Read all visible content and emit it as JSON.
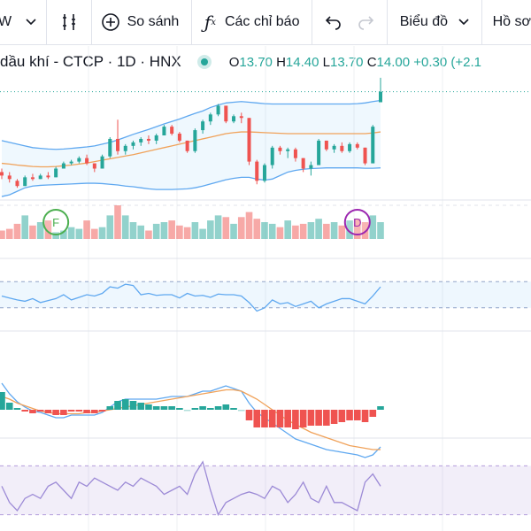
{
  "toolbar": {
    "interval_text": "W",
    "compare_label": "So sánh",
    "indicators_label": "Các chỉ báo",
    "chart_type_label": "Biểu đồ",
    "profile_label": "Hồ sơ"
  },
  "legend": {
    "symbol_desc": "dầu khí - CTCP · 1D · HNX",
    "open_key": "O",
    "open": "13.70",
    "high_key": "H",
    "high": "14.40",
    "low_key": "L",
    "low": "13.70",
    "close_key": "C",
    "close": "14.00",
    "change": "+0.30 (+2.1"
  },
  "colors": {
    "up": "#26a69a",
    "down": "#ef5350",
    "bb": "#5fa8f0",
    "sma": "#f0a25a",
    "rsi": "#9c8ad6"
  },
  "markers": [
    {
      "label": "F",
      "color": "#4caf50"
    },
    {
      "label": "D",
      "color": "#9c27b0"
    }
  ],
  "chart_data": {
    "type": "candlestick",
    "candles": [
      [
        11.7,
        11.8,
        11.5,
        11.6
      ],
      [
        11.6,
        11.7,
        11.4,
        11.5
      ],
      [
        11.45,
        11.5,
        11.25,
        11.3
      ],
      [
        11.3,
        11.6,
        11.3,
        11.55
      ],
      [
        11.55,
        11.65,
        11.45,
        11.5
      ],
      [
        11.5,
        11.65,
        11.5,
        11.6
      ],
      [
        11.6,
        11.7,
        11.5,
        11.55
      ],
      [
        11.55,
        11.85,
        11.55,
        11.8
      ],
      [
        11.8,
        12.0,
        11.8,
        11.95
      ],
      [
        11.95,
        12.05,
        11.9,
        12.0
      ],
      [
        12.0,
        12.15,
        11.95,
        12.1
      ],
      [
        12.1,
        12.2,
        11.9,
        11.95
      ],
      [
        11.95,
        11.95,
        11.7,
        11.8
      ],
      [
        11.8,
        12.2,
        11.8,
        12.15
      ],
      [
        12.15,
        12.7,
        12.1,
        12.65
      ],
      [
        12.65,
        13.2,
        12.2,
        12.3
      ],
      [
        12.3,
        12.5,
        12.2,
        12.45
      ],
      [
        12.45,
        12.6,
        12.35,
        12.55
      ],
      [
        12.55,
        12.7,
        12.45,
        12.65
      ],
      [
        12.65,
        12.75,
        12.5,
        12.6
      ],
      [
        12.6,
        12.8,
        12.5,
        12.75
      ],
      [
        12.75,
        13.05,
        12.75,
        13.0
      ],
      [
        13.0,
        13.05,
        12.75,
        12.8
      ],
      [
        12.8,
        12.85,
        12.55,
        12.6
      ],
      [
        12.6,
        12.6,
        12.25,
        12.3
      ],
      [
        12.3,
        12.95,
        12.25,
        12.9
      ],
      [
        12.9,
        13.2,
        12.8,
        13.15
      ],
      [
        13.15,
        13.4,
        13.05,
        13.35
      ],
      [
        13.35,
        13.65,
        13.3,
        13.6
      ],
      [
        13.6,
        13.6,
        13.1,
        13.15
      ],
      [
        13.15,
        13.35,
        13.1,
        13.3
      ],
      [
        13.3,
        13.4,
        13.1,
        13.25
      ],
      [
        13.25,
        13.25,
        11.9,
        12.0
      ],
      [
        12.0,
        12.05,
        11.35,
        11.45
      ],
      [
        11.45,
        11.95,
        11.4,
        11.9
      ],
      [
        11.9,
        12.45,
        11.8,
        12.4
      ],
      [
        12.4,
        12.45,
        12.2,
        12.3
      ],
      [
        12.3,
        12.4,
        12.1,
        12.35
      ],
      [
        12.35,
        12.4,
        12.0,
        12.1
      ],
      [
        12.1,
        12.1,
        11.7,
        11.8
      ],
      [
        11.8,
        12.0,
        11.6,
        11.9
      ],
      [
        11.9,
        12.65,
        11.9,
        12.6
      ],
      [
        12.6,
        12.6,
        12.3,
        12.35
      ],
      [
        12.35,
        12.5,
        12.25,
        12.45
      ],
      [
        12.45,
        12.55,
        12.25,
        12.3
      ],
      [
        12.3,
        12.55,
        12.25,
        12.5
      ],
      [
        12.5,
        12.55,
        12.35,
        12.4
      ],
      [
        12.4,
        12.4,
        11.9,
        11.95
      ],
      [
        11.95,
        13.05,
        11.95,
        13.0
      ],
      [
        13.7,
        14.4,
        13.7,
        14.0
      ]
    ],
    "candles_format": [
      "open",
      "high",
      "low",
      "close"
    ],
    "bollinger": {
      "upper": [
        12.6,
        12.55,
        12.5,
        12.45,
        12.4,
        12.38,
        12.36,
        12.35,
        12.36,
        12.38,
        12.4,
        12.42,
        12.45,
        12.5,
        12.55,
        12.62,
        12.7,
        12.78,
        12.85,
        12.92,
        13.0,
        13.08,
        13.15,
        13.22,
        13.3,
        13.38,
        13.45,
        13.55,
        13.62,
        13.68,
        13.7,
        13.72,
        13.7,
        13.68,
        13.66,
        13.65,
        13.65,
        13.65,
        13.65,
        13.65,
        13.65,
        13.65,
        13.65,
        13.65,
        13.65,
        13.65,
        13.66,
        13.68,
        13.72,
        13.75
      ],
      "middle": [
        11.95,
        11.93,
        11.9,
        11.88,
        11.86,
        11.85,
        11.85,
        11.86,
        11.88,
        11.9,
        11.93,
        11.96,
        12.0,
        12.04,
        12.08,
        12.12,
        12.16,
        12.2,
        12.25,
        12.3,
        12.35,
        12.4,
        12.45,
        12.5,
        12.55,
        12.6,
        12.65,
        12.7,
        12.75,
        12.8,
        12.83,
        12.85,
        12.85,
        12.84,
        12.83,
        12.82,
        12.81,
        12.8,
        12.8,
        12.8,
        12.8,
        12.8,
        12.8,
        12.8,
        12.8,
        12.8,
        12.8,
        12.8,
        12.82,
        12.85
      ],
      "lower": [
        11.0,
        11.05,
        11.15,
        11.25,
        11.3,
        11.32,
        11.33,
        11.34,
        11.35,
        11.36,
        11.37,
        11.38,
        11.38,
        11.37,
        11.35,
        11.33,
        11.3,
        11.28,
        11.25,
        11.22,
        11.2,
        11.2,
        11.2,
        11.21,
        11.22,
        11.25,
        11.3,
        11.36,
        11.42,
        11.48,
        11.52,
        11.55,
        11.55,
        11.5,
        11.47,
        11.5,
        11.6,
        11.7,
        11.75,
        11.78,
        11.8,
        11.81,
        11.82,
        11.82,
        11.82,
        11.82,
        11.82,
        11.81,
        11.81,
        11.82
      ]
    },
    "volume": [
      10,
      12,
      18,
      28,
      16,
      20,
      22,
      8,
      10,
      14,
      12,
      22,
      12,
      14,
      28,
      40,
      28,
      20,
      16,
      10,
      18,
      20,
      22,
      16,
      14,
      20,
      12,
      22,
      28,
      26,
      18,
      26,
      32,
      24,
      20,
      18,
      14,
      22,
      16,
      18,
      20,
      24,
      18,
      20,
      16,
      22,
      24,
      20,
      28,
      20
    ],
    "rsi": [
      48,
      45,
      42,
      40,
      44,
      38,
      41,
      44,
      50,
      42,
      46,
      50,
      48,
      52,
      62,
      60,
      66,
      64,
      50,
      52,
      49,
      50,
      50,
      45,
      52,
      48,
      49,
      46,
      51,
      50,
      50,
      48,
      38,
      25,
      30,
      42,
      36,
      38,
      32,
      36,
      40,
      30,
      36,
      40,
      44,
      44,
      40,
      36,
      48,
      62
    ],
    "rsi_levels": [
      70,
      30
    ],
    "macd": {
      "line": [
        0.2,
        0.12,
        0.06,
        0.02,
        -0.01,
        -0.02,
        -0.04,
        -0.06,
        -0.06,
        -0.04,
        -0.04,
        -0.04,
        -0.04,
        -0.02,
        0.02,
        0.06,
        0.08,
        0.08,
        0.08,
        0.08,
        0.08,
        0.09,
        0.1,
        0.1,
        0.1,
        0.12,
        0.14,
        0.14,
        0.16,
        0.18,
        0.16,
        0.14,
        0.05,
        -0.02,
        -0.06,
        -0.1,
        -0.14,
        -0.18,
        -0.22,
        -0.24,
        -0.26,
        -0.28,
        -0.3,
        -0.31,
        -0.32,
        -0.33,
        -0.34,
        -0.36,
        -0.34,
        -0.28
      ],
      "signal": [
        0.1,
        0.08,
        0.05,
        0.03,
        0.01,
        -0.01,
        -0.02,
        -0.03,
        -0.03,
        -0.03,
        -0.03,
        -0.02,
        -0.02,
        -0.01,
        0.0,
        0.01,
        0.02,
        0.03,
        0.04,
        0.05,
        0.06,
        0.07,
        0.08,
        0.09,
        0.1,
        0.11,
        0.12,
        0.13,
        0.14,
        0.15,
        0.15,
        0.14,
        0.11,
        0.08,
        0.04,
        0.0,
        -0.04,
        -0.08,
        -0.11,
        -0.14,
        -0.17,
        -0.19,
        -0.21,
        -0.23,
        -0.25,
        -0.27,
        -0.28,
        -0.29,
        -0.3,
        -0.3
      ]
    },
    "stoch": [
      55,
      35,
      25,
      40,
      45,
      40,
      55,
      60,
      50,
      40,
      60,
      55,
      65,
      60,
      55,
      50,
      60,
      55,
      65,
      60,
      55,
      45,
      50,
      55,
      45,
      70,
      85,
      50,
      20,
      35,
      40,
      45,
      48,
      45,
      40,
      55,
      50,
      35,
      45,
      60,
      40,
      35,
      55,
      35,
      35,
      30,
      25,
      60,
      70,
      55
    ]
  }
}
